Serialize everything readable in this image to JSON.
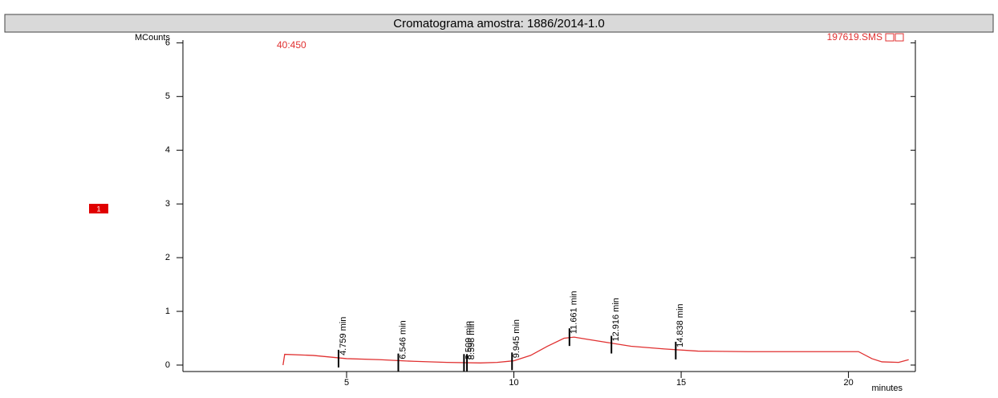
{
  "chart_data": {
    "type": "line",
    "title": "Cromatograma amostra: 1886/2014-1.0",
    "y_label": "MCounts",
    "x_label": "minutes",
    "ion_range": "40:450",
    "file_name": "197619.SMS",
    "trace_marker": "1",
    "xlim": [
      0,
      22
    ],
    "ylim": [
      -0.12,
      6.05
    ],
    "xticks": [
      5,
      10,
      15,
      20
    ],
    "yticks": [
      0,
      1,
      2,
      3,
      4,
      5,
      6
    ],
    "series": [
      {
        "color": "#e03030",
        "x": [
          3.1,
          3.15,
          4,
          5,
          6,
          7,
          8,
          9,
          9.5,
          10,
          10.5,
          11,
          11.5,
          11.8,
          12.2,
          12.8,
          13.5,
          14.5,
          15.5,
          17,
          19,
          20.3,
          20.7,
          21,
          21.5,
          21.8
        ],
        "values": [
          0.0,
          0.2,
          0.18,
          0.12,
          0.1,
          0.07,
          0.05,
          0.04,
          0.05,
          0.08,
          0.18,
          0.35,
          0.5,
          0.52,
          0.48,
          0.42,
          0.35,
          0.3,
          0.26,
          0.25,
          0.25,
          0.25,
          0.12,
          0.06,
          0.05,
          0.1
        ]
      }
    ],
    "peaks": {
      "color": "#000000",
      "x": [
        4.759,
        6.546,
        8.509,
        8.598,
        9.945,
        11.661,
        12.916,
        14.838
      ],
      "values": [
        0.12,
        0.05,
        0.04,
        0.04,
        0.07,
        0.52,
        0.38,
        0.27
      ],
      "labels": [
        "4.759 min",
        "6.546 min",
        "8.509 min",
        "8.598 min",
        "9.945 min",
        "11.661 min",
        "12.916 min",
        "14.838 min"
      ]
    }
  }
}
